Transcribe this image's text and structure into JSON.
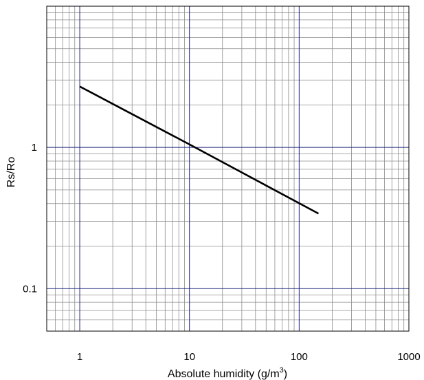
{
  "chart_data": {
    "type": "line",
    "title": "",
    "xlabel": "Absolute humidity (g/m",
    "xlabel_sup": "3",
    "xlabel_close": ")",
    "ylabel": "Rs/Ro",
    "x_scale": "log",
    "y_scale": "log",
    "xlim": [
      0.5,
      1000
    ],
    "ylim": [
      0.05,
      10
    ],
    "x_ticks": [
      1,
      10,
      100,
      1000
    ],
    "x_tick_labels": [
      "1",
      "10",
      "100",
      "1000"
    ],
    "y_ticks": [
      0.1,
      1
    ],
    "y_tick_labels": [
      "0.1",
      "1"
    ],
    "grid": true,
    "grid_color_major": "#1a237e",
    "grid_color_minor": "#8c8c8c",
    "series": [
      {
        "color": "#000000",
        "x": [
          1,
          10,
          150
        ],
        "y": [
          2.7,
          1.05,
          0.34
        ]
      }
    ]
  }
}
